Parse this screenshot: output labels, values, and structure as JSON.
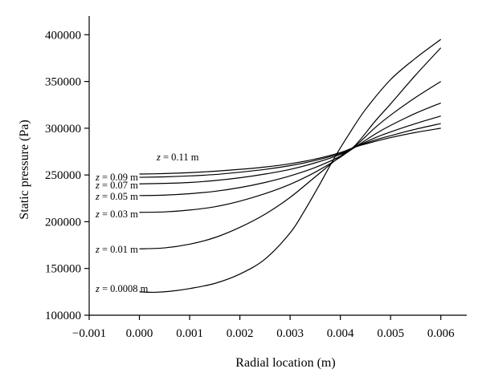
{
  "chart_data": {
    "type": "line",
    "title": "",
    "xlabel": "Radial location (m)",
    "ylabel": "Static pressure (Pa)",
    "xlim": [
      -0.001,
      0.0065
    ],
    "ylim": [
      100000,
      420000
    ],
    "xticks": [
      -0.001,
      0.0,
      0.001,
      0.002,
      0.003,
      0.004,
      0.005,
      0.006
    ],
    "xtick_labels": [
      "−0.001",
      "0.000",
      "0.001",
      "0.002",
      "0.003",
      "0.004",
      "0.005",
      "0.006"
    ],
    "yticks": [
      100000,
      150000,
      200000,
      250000,
      300000,
      350000,
      400000
    ],
    "ytick_labels": [
      "100000",
      "150000",
      "200000",
      "250000",
      "300000",
      "350000",
      "400000"
    ],
    "grid": false,
    "series": [
      {
        "name": "z = 0.0008 m",
        "label_prefix": "z",
        "label_suffix": " = 0.0008 m",
        "x": [
          0.0,
          0.0003,
          0.0006,
          0.001,
          0.0015,
          0.002,
          0.0025,
          0.003,
          0.0033,
          0.0036,
          0.0039,
          0.0042,
          0.0045,
          0.005,
          0.0055,
          0.006
        ],
        "y": [
          125000,
          124500,
          125500,
          128500,
          134000,
          144000,
          160000,
          188000,
          213000,
          241000,
          270000,
          296000,
          320000,
          352000,
          375000,
          395000
        ]
      },
      {
        "name": "z = 0.01 m",
        "label_prefix": "z",
        "label_suffix": " = 0.01 m",
        "x": [
          0.0,
          0.0005,
          0.001,
          0.0015,
          0.002,
          0.0025,
          0.003,
          0.0035,
          0.004,
          0.0043,
          0.0047,
          0.005,
          0.0055,
          0.006
        ],
        "y": [
          171000,
          172000,
          176000,
          183000,
          194000,
          208000,
          226000,
          248000,
          270000,
          282000,
          308000,
          326000,
          357000,
          386000
        ]
      },
      {
        "name": "z = 0.03 m",
        "label_prefix": "z",
        "label_suffix": " = 0.03 m",
        "x": [
          0.0,
          0.0005,
          0.001,
          0.0015,
          0.002,
          0.0025,
          0.003,
          0.0035,
          0.004,
          0.0043,
          0.0047,
          0.005,
          0.0055,
          0.006
        ],
        "y": [
          210000,
          210500,
          212500,
          216000,
          222000,
          230000,
          240000,
          253000,
          269000,
          281000,
          301000,
          314000,
          333000,
          350000
        ]
      },
      {
        "name": "z = 0.05 m",
        "label_prefix": "z",
        "label_suffix": " = 0.05 m",
        "x": [
          0.0,
          0.0005,
          0.001,
          0.0015,
          0.002,
          0.0025,
          0.003,
          0.0035,
          0.004,
          0.0043,
          0.0047,
          0.005,
          0.0055,
          0.006
        ],
        "y": [
          228000,
          228500,
          230000,
          232500,
          236500,
          242000,
          249000,
          258000,
          270000,
          280000,
          294000,
          303000,
          316000,
          327000
        ]
      },
      {
        "name": "z = 0.07 m",
        "label_prefix": "z",
        "label_suffix": " = 0.07 m",
        "x": [
          0.0,
          0.0005,
          0.001,
          0.0015,
          0.002,
          0.0025,
          0.003,
          0.0035,
          0.004,
          0.0043,
          0.0047,
          0.005,
          0.0055,
          0.006
        ],
        "y": [
          240500,
          241000,
          242000,
          244000,
          247000,
          251000,
          256000,
          263000,
          272000,
          280000,
          290000,
          296000,
          305000,
          313000
        ]
      },
      {
        "name": "z = 0.09 m",
        "label_prefix": "z",
        "label_suffix": " = 0.09 m",
        "x": [
          0.0,
          0.0005,
          0.001,
          0.0015,
          0.002,
          0.0025,
          0.003,
          0.0035,
          0.004,
          0.0043,
          0.0047,
          0.005,
          0.0055,
          0.006
        ],
        "y": [
          247500,
          248000,
          249000,
          250500,
          253000,
          256000,
          260000,
          265500,
          273000,
          280000,
          287500,
          292000,
          299000,
          305000
        ]
      },
      {
        "name": "z = 0.11 m",
        "label_prefix": "z",
        "label_suffix": " = 0.11 m",
        "x": [
          0.0,
          0.0005,
          0.001,
          0.0015,
          0.002,
          0.0025,
          0.003,
          0.0035,
          0.004,
          0.0043,
          0.0047,
          0.005,
          0.0055,
          0.006
        ],
        "y": [
          251000,
          251500,
          252500,
          254000,
          256000,
          258500,
          262000,
          267000,
          274000,
          280000,
          286000,
          290000,
          295500,
          300000
        ]
      }
    ]
  }
}
